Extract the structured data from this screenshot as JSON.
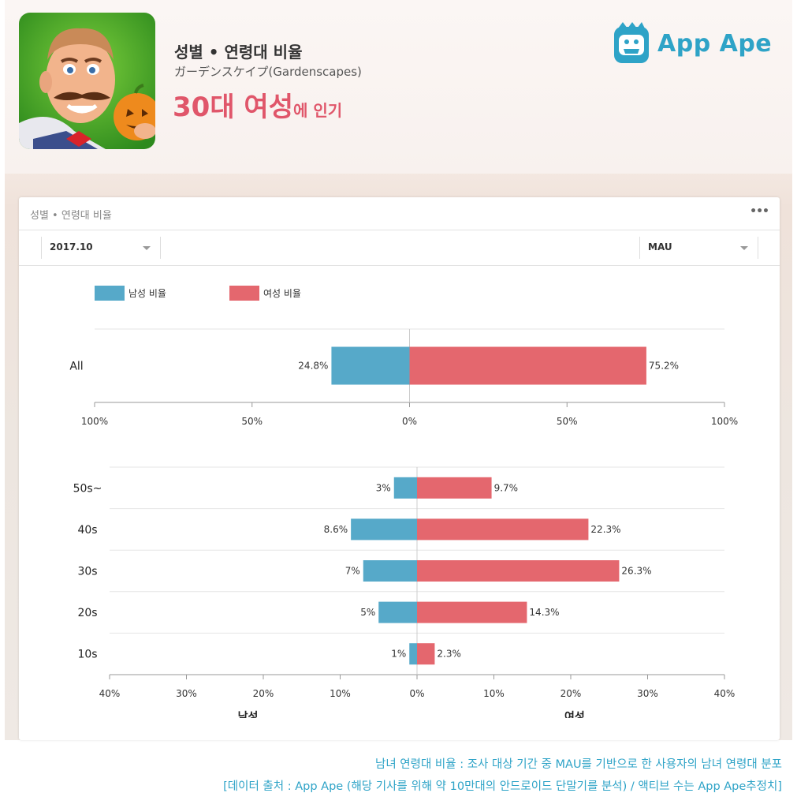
{
  "header": {
    "title": "성별 • 연령대 비율",
    "subtitle": "ガーデンスケイプ(Gardenscapes)",
    "headline_main": "30대 여성",
    "headline_suffix": "에 인기"
  },
  "brand": {
    "name": "App Ape",
    "color": "#2ea3c7"
  },
  "card": {
    "title": "성별 • 연령대 비율",
    "menu_icon": "more-icon",
    "period": "2017.10",
    "metric": "MAU"
  },
  "legend": {
    "male": "남성 비율",
    "female": "여성 비율"
  },
  "colors": {
    "male": "#56a9c9",
    "female": "#e4676e",
    "axis": "#999999",
    "grid": "#e6e6e6"
  },
  "chart_data": [
    {
      "type": "bar",
      "orientation": "horizontal-diverging",
      "categories": [
        "All"
      ],
      "series": [
        {
          "name": "남성 비율",
          "values": [
            24.8
          ],
          "labels": [
            "24.8%"
          ]
        },
        {
          "name": "여성 비율",
          "values": [
            75.2
          ],
          "labels": [
            "75.2%"
          ]
        }
      ],
      "xlim": [
        -100,
        100
      ],
      "xticks": [
        "100%",
        "50%",
        "0%",
        "50%",
        "100%"
      ]
    },
    {
      "type": "bar",
      "orientation": "horizontal-diverging",
      "categories": [
        "50s~",
        "40s",
        "30s",
        "20s",
        "10s"
      ],
      "series": [
        {
          "name": "남성 비율",
          "values": [
            3,
            8.6,
            7,
            5,
            1
          ],
          "labels": [
            "3%",
            "8.6%",
            "7%",
            "5%",
            "1%"
          ]
        },
        {
          "name": "여성 비율",
          "values": [
            9.7,
            22.3,
            26.3,
            14.3,
            2.3
          ],
          "labels": [
            "9.7%",
            "22.3%",
            "26.3%",
            "14.3%",
            "2.3%"
          ]
        }
      ],
      "xlim": [
        -40,
        40
      ],
      "xticks": [
        "40%",
        "30%",
        "20%",
        "10%",
        "0%",
        "10%",
        "20%",
        "30%",
        "40%"
      ],
      "xlabel_left": "남성",
      "xlabel_right": "여성"
    }
  ],
  "footer": {
    "line1": "남녀 연령대 비율 : 조사 대상 기간 중 MAU를 기반으로 한 사용자의 남녀 연령대 분포",
    "line2": "[데이터 출처 : App Ape (해당 기사를 위해 약 10만대의 안드로이드 단말기를 분석) / 액티브 수는 App Ape추정치]"
  }
}
